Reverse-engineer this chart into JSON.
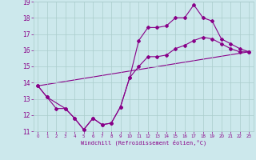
{
  "xlabel": "Windchill (Refroidissement éolien,°C)",
  "xlim": [
    -0.5,
    23.5
  ],
  "ylim": [
    11,
    19
  ],
  "yticks": [
    11,
    12,
    13,
    14,
    15,
    16,
    17,
    18,
    19
  ],
  "xticks": [
    0,
    1,
    2,
    3,
    4,
    5,
    6,
    7,
    8,
    9,
    10,
    11,
    12,
    13,
    14,
    15,
    16,
    17,
    18,
    19,
    20,
    21,
    22,
    23
  ],
  "background_color": "#cce8ec",
  "line_color": "#880088",
  "grid_color": "#aacccc",
  "line1_x": [
    0,
    1,
    3,
    4,
    5,
    6,
    7,
    8,
    9,
    10,
    11,
    12,
    13,
    14,
    15,
    16,
    17,
    18,
    19,
    20,
    21,
    22,
    23
  ],
  "line1_y": [
    13.8,
    13.1,
    12.4,
    11.8,
    11.1,
    11.8,
    11.4,
    11.5,
    12.5,
    14.3,
    16.6,
    17.4,
    17.4,
    17.5,
    18.0,
    18.0,
    18.8,
    18.0,
    17.8,
    16.7,
    16.4,
    16.1,
    15.9
  ],
  "line2_x": [
    0,
    1,
    2,
    3,
    4,
    5,
    6,
    7,
    8,
    9,
    10,
    11,
    12,
    13,
    14,
    15,
    16,
    17,
    18,
    19,
    20,
    21,
    22,
    23
  ],
  "line2_y": [
    13.8,
    13.1,
    12.4,
    12.4,
    11.8,
    11.1,
    11.8,
    11.4,
    11.5,
    12.5,
    14.3,
    15.0,
    15.6,
    15.6,
    15.7,
    16.1,
    16.3,
    16.6,
    16.8,
    16.7,
    16.4,
    16.1,
    15.9,
    15.9
  ],
  "line3_x": [
    0,
    23
  ],
  "line3_y": [
    13.8,
    15.9
  ]
}
